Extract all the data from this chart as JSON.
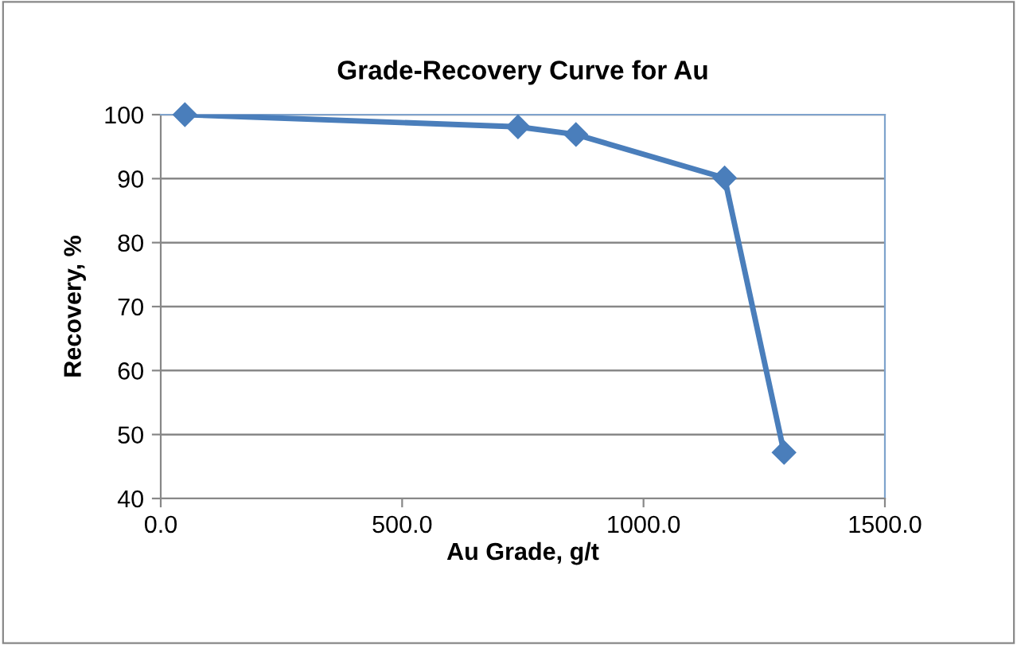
{
  "chart_data": {
    "type": "line",
    "title": "Grade-Recovery Curve for Au",
    "xlabel": "Au Grade, g/t",
    "ylabel": "Recovery, %",
    "series": [
      {
        "color": "#4a7ebb",
        "x": [
          50,
          740,
          860,
          1168,
          1291
        ],
        "values": [
          100,
          98.1,
          96.9,
          90.1,
          47.2
        ]
      }
    ],
    "xlim": [
      0,
      1500
    ],
    "xticks": [
      {
        "value": 0,
        "label": "0.0"
      },
      {
        "value": 500,
        "label": "500.0"
      },
      {
        "value": 1000,
        "label": "1000.0"
      },
      {
        "value": 1500,
        "label": "1500.0"
      }
    ],
    "ylim": [
      40,
      100
    ],
    "yticks": [
      40,
      50,
      60,
      70,
      80,
      90,
      100
    ],
    "grid": "y",
    "marker": "diamond",
    "line_style": "solid",
    "legend": false
  }
}
